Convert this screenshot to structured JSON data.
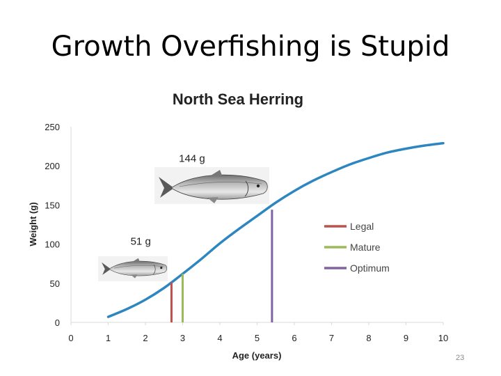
{
  "slide": {
    "title": "Growth Overfishing is Stupid",
    "number": "23"
  },
  "fish_icon": "herring-fish-icon",
  "chart_data": {
    "type": "line",
    "title": "North Sea Herring",
    "xlabel": "Age (years)",
    "ylabel": "Weight (g)",
    "xlim": [
      0,
      10
    ],
    "ylim": [
      0,
      250
    ],
    "xticks": [
      0,
      1,
      2,
      3,
      4,
      5,
      6,
      7,
      8,
      9,
      10
    ],
    "yticks": [
      0,
      50,
      100,
      150,
      200,
      250
    ],
    "grid": false,
    "legend_position": "right",
    "series": [
      {
        "color": "#2e86c1",
        "x": [
          1,
          1.5,
          2,
          2.5,
          3,
          3.5,
          4,
          4.5,
          5,
          5.5,
          6,
          6.5,
          7,
          7.5,
          8,
          8.5,
          9,
          9.5,
          10
        ],
        "y": [
          7,
          17,
          29,
          44,
          62,
          81,
          101,
          119,
          136,
          153,
          168,
          181,
          192,
          202,
          210,
          217,
          222,
          226,
          229
        ]
      }
    ],
    "markers": [
      {
        "name": "Legal",
        "age": 2.7,
        "weight": 51,
        "color": "#c0504d"
      },
      {
        "name": "Mature",
        "age": 3.0,
        "weight": 62,
        "color": "#9bbb59"
      },
      {
        "name": "Optimum",
        "age": 5.4,
        "weight": 144,
        "color": "#8064a2"
      }
    ],
    "annotations": [
      {
        "text": "144 g",
        "age": 2.9,
        "weight": 205
      },
      {
        "text": "51 g",
        "age": 1.6,
        "weight": 99
      }
    ]
  }
}
